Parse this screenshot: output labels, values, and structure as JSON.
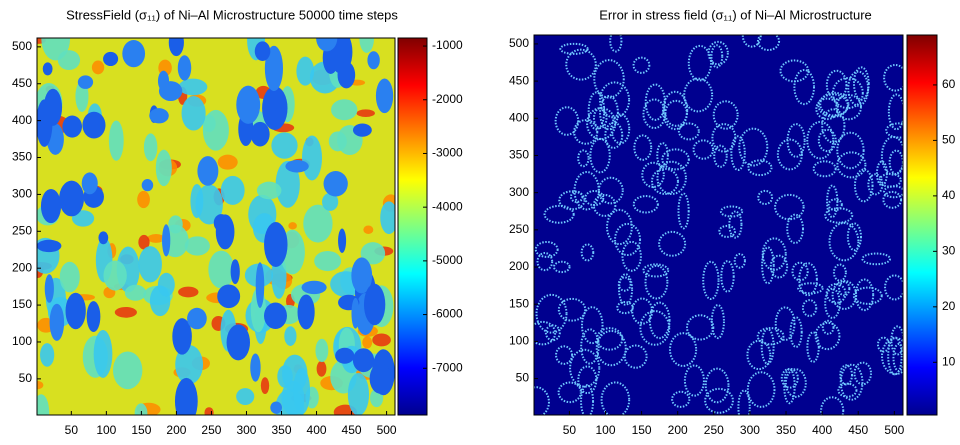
{
  "chart_data": [
    {
      "type": "heatmap",
      "title": "StressField (σ₁₁) of Ni–Al Microstructure 50000 time steps",
      "colormap": "jet",
      "xlim": [
        1,
        512
      ],
      "ylim": [
        1,
        512
      ],
      "xticks": [
        50,
        100,
        150,
        200,
        250,
        300,
        350,
        400,
        450,
        500
      ],
      "yticks": [
        50,
        100,
        150,
        200,
        250,
        300,
        350,
        400,
        450,
        500
      ],
      "clim": [
        -7870,
        -850
      ],
      "cticks": [
        -1000,
        -2000,
        -3000,
        -4000,
        -5000,
        -6000,
        -7000
      ]
    },
    {
      "type": "heatmap",
      "title": "Error in stress field (σ₁₁) of Ni–Al Microstructure",
      "colormap": "jet",
      "xlim": [
        1,
        512
      ],
      "ylim": [
        1,
        512
      ],
      "xticks": [
        50,
        100,
        150,
        200,
        250,
        300,
        350,
        400,
        450,
        500
      ],
      "yticks": [
        50,
        100,
        150,
        200,
        250,
        300,
        350,
        400,
        450,
        500
      ],
      "clim": [
        0.5,
        69
      ],
      "cticks": [
        10,
        20,
        30,
        40,
        50,
        60
      ]
    }
  ]
}
